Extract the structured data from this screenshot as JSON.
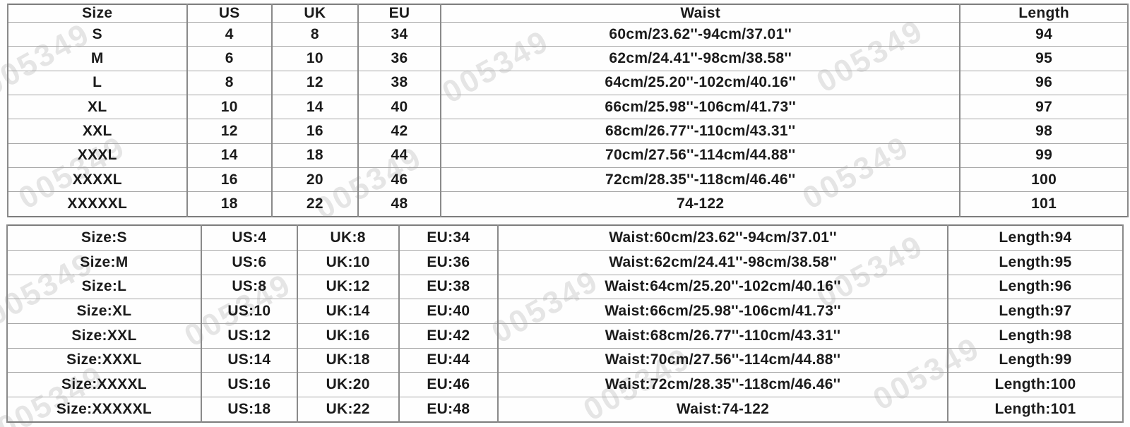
{
  "watermark": {
    "text": "005349",
    "color": "#c9c9c9"
  },
  "size_chart_top": {
    "headers": [
      "Size",
      "US",
      "UK",
      "EU",
      "Waist",
      "Length"
    ],
    "rows": [
      [
        "S",
        "4",
        "8",
        "34",
        "60cm/23.62''-94cm/37.01''",
        "94"
      ],
      [
        "M",
        "6",
        "10",
        "36",
        "62cm/24.41''-98cm/38.58''",
        "95"
      ],
      [
        "L",
        "8",
        "12",
        "38",
        "64cm/25.20''-102cm/40.16''",
        "96"
      ],
      [
        "XL",
        "10",
        "14",
        "40",
        "66cm/25.98''-106cm/41.73''",
        "97"
      ],
      [
        "XXL",
        "12",
        "16",
        "42",
        "68cm/26.77''-110cm/43.31''",
        "98"
      ],
      [
        "XXXL",
        "14",
        "18",
        "44",
        "70cm/27.56''-114cm/44.88''",
        "99"
      ],
      [
        "XXXXL",
        "16",
        "20",
        "46",
        "72cm/28.35''-118cm/46.46''",
        "100"
      ],
      [
        "XXXXXL",
        "18",
        "22",
        "48",
        "74-122",
        "101"
      ]
    ]
  },
  "size_chart_bottom": {
    "rows": [
      [
        "Size:S",
        "US:4",
        "UK:8",
        "EU:34",
        "Waist:60cm/23.62''-94cm/37.01''",
        "Length:94"
      ],
      [
        "Size:M",
        "US:6",
        "UK:10",
        "EU:36",
        "Waist:62cm/24.41''-98cm/38.58''",
        "Length:95"
      ],
      [
        "Size:L",
        "US:8",
        "UK:12",
        "EU:38",
        "Waist:64cm/25.20''-102cm/40.16''",
        "Length:96"
      ],
      [
        "Size:XL",
        "US:10",
        "UK:14",
        "EU:40",
        "Waist:66cm/25.98''-106cm/41.73''",
        "Length:97"
      ],
      [
        "Size:XXL",
        "US:12",
        "UK:16",
        "EU:42",
        "Waist:68cm/26.77''-110cm/43.31''",
        "Length:98"
      ],
      [
        "Size:XXXL",
        "US:14",
        "UK:18",
        "EU:44",
        "Waist:70cm/27.56''-114cm/44.88''",
        "Length:99"
      ],
      [
        "Size:XXXXL",
        "US:16",
        "UK:20",
        "EU:46",
        "Waist:72cm/28.35''-118cm/46.46''",
        "Length:100"
      ],
      [
        "Size:XXXXXL",
        "US:18",
        "UK:22",
        "EU:48",
        "Waist:74-122",
        "Length:101"
      ]
    ]
  }
}
